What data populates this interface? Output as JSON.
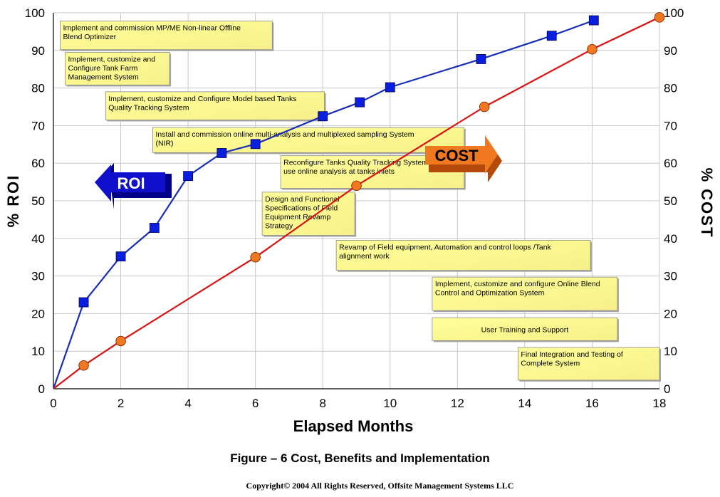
{
  "chart_data": {
    "type": "line",
    "xlabel": "Elapsed Months",
    "ylabel_left": "% ROI",
    "ylabel_right": "% COST",
    "xlim": [
      0,
      18
    ],
    "ylim": [
      0,
      100
    ],
    "x_ticks": [
      0,
      2,
      4,
      6,
      8,
      10,
      12,
      14,
      16,
      18
    ],
    "y_ticks": [
      0,
      10,
      20,
      30,
      40,
      50,
      60,
      70,
      80,
      90,
      100
    ],
    "grid": true,
    "series": [
      {
        "name": "ROI",
        "color": "#1a2fb8",
        "marker": "square",
        "marker_color": "#0a1ee0",
        "x": [
          0,
          0.9,
          2,
          3,
          4,
          5,
          6,
          8,
          9.1,
          10,
          12.7,
          14.8,
          16.05
        ],
        "y": [
          0,
          23,
          35.2,
          42.8,
          56.6,
          62.7,
          65.1,
          72.5,
          76.2,
          80.2,
          87.7,
          93.9,
          98
        ]
      },
      {
        "name": "COST",
        "color": "#dd1010",
        "marker": "circle",
        "marker_color": "#f07820",
        "x": [
          0,
          0.9,
          2,
          6,
          9,
          12.8,
          16,
          18
        ],
        "y": [
          0,
          6.2,
          12.7,
          35,
          54,
          75,
          90.3,
          98.8
        ]
      }
    ],
    "annotations": [
      {
        "text": "Implement and commission MP/ME Non-linear Offline Blend Optimizer",
        "lines": [
          "Implement and commission MP/ME Non-linear Offline",
          "Blend Optimizer"
        ],
        "x0": 0.2,
        "x1": 6.5,
        "y_top": 97.8,
        "y_bottom": 90.2
      },
      {
        "text": "Implement, customize and Configure Tank Farm Management System",
        "lines": [
          "Implement, customize and",
          "Configure Tank Farm",
          "Management System"
        ],
        "x0": 0.35,
        "x1": 3.45,
        "y_top": 89.5,
        "y_bottom": 80.8
      },
      {
        "text": "Implement, customize and Configure Model based Tanks Quality Tracking System",
        "lines": [
          "Implement, customize and Configure Model based Tanks",
          "Quality Tracking System"
        ],
        "x0": 1.55,
        "x1": 8.05,
        "y_top": 79,
        "y_bottom": 71.5
      },
      {
        "text": "Install and commission online multi-analysis and multiplexed sampling System (NIR)",
        "lines": [
          "Install and commission online multi-analysis and multiplexed sampling System",
          "(NIR)"
        ],
        "x0": 2.95,
        "x1": 12.2,
        "y_top": 69.5,
        "y_bottom": 62.8
      },
      {
        "text": "Reconfigure Tanks Quality Tracking System use online analysis at tanks inlets",
        "lines": [
          "Reconfigure Tanks Quality Tracking System",
          "use online analysis at tanks inlets"
        ],
        "x0": 6.75,
        "x1": 12.2,
        "y_top": 62,
        "y_bottom": 53.3
      },
      {
        "text": "Design and Functional Specifications of Field Equipment Revamp Strategy",
        "lines": [
          "Design and Functional",
          "Specifications of Field",
          "Equipment Revamp",
          "Strategy"
        ],
        "x0": 6.2,
        "x1": 8.95,
        "y_top": 52.3,
        "y_bottom": 40.8
      },
      {
        "text": "Revamp of Field equipment, Automation and control loops /Tank alignment work",
        "lines": [
          "Revamp of Field equipment, Automation and control loops /Tank",
          "alignment work"
        ],
        "x0": 8.4,
        "x1": 15.95,
        "y_top": 39.5,
        "y_bottom": 31.5
      },
      {
        "text": "Implement, customize and configure Online Blend Control and Optimization System",
        "lines": [
          "Implement, customize and configure Online Blend",
          "Control and Optimization System"
        ],
        "x0": 11.25,
        "x1": 16.75,
        "y_top": 29.7,
        "y_bottom": 20.8
      },
      {
        "text": "User Training and Support",
        "lines": [
          "User Training and Support"
        ],
        "x0": 11.25,
        "x1": 16.75,
        "y_top": 18.9,
        "y_bottom": 12.8,
        "align": "center"
      },
      {
        "text": "Final Integration and Testing of Complete System",
        "lines": [
          "Final Integration and Testing of",
          "Complete System"
        ],
        "x0": 13.8,
        "x1": 18,
        "y_top": 11,
        "y_bottom": 2.3
      }
    ],
    "arrow_labels": [
      {
        "text": "ROI",
        "direction": "left",
        "fill": "#1010cc",
        "text_color": "#ffffff"
      },
      {
        "text": "COST",
        "direction": "right",
        "fill": "#f0781e",
        "text_color": "#000000"
      }
    ]
  },
  "caption": "Figure – 6 Cost, Benefits and Implementation",
  "copyright": "Copyright© 2004 All Rights Reserved, Offsite Management Systems LLC"
}
